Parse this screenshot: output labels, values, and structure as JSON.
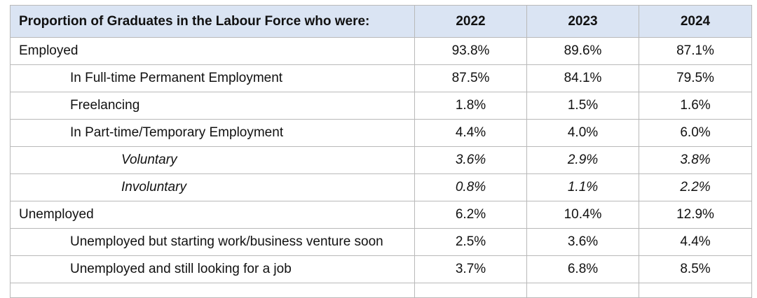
{
  "table": {
    "header": {
      "label": "Proportion of Graduates in the Labour Force who were:",
      "years": [
        "2022",
        "2023",
        "2024"
      ]
    },
    "rows": [
      {
        "label": "Employed",
        "level": 0,
        "italic": false,
        "values": [
          "93.8%",
          "89.6%",
          "87.1%"
        ]
      },
      {
        "label": "In Full-time Permanent Employment",
        "level": 1,
        "italic": false,
        "values": [
          "87.5%",
          "84.1%",
          "79.5%"
        ]
      },
      {
        "label": "Freelancing",
        "level": 1,
        "italic": false,
        "values": [
          "1.8%",
          "1.5%",
          "1.6%"
        ]
      },
      {
        "label": "In Part-time/Temporary Employment",
        "level": 1,
        "italic": false,
        "values": [
          "4.4%",
          "4.0%",
          "6.0%"
        ]
      },
      {
        "label": "Voluntary",
        "level": 2,
        "italic": true,
        "values": [
          "3.6%",
          "2.9%",
          "3.8%"
        ]
      },
      {
        "label": "Involuntary",
        "level": 2,
        "italic": true,
        "values": [
          "0.8%",
          "1.1%",
          "2.2%"
        ]
      },
      {
        "label": "Unemployed",
        "level": 0,
        "italic": false,
        "values": [
          "6.2%",
          "10.4%",
          "12.9%"
        ]
      },
      {
        "label": "Unemployed but starting work/business venture soon",
        "level": 1,
        "italic": false,
        "values": [
          "2.5%",
          "3.6%",
          "4.4%"
        ]
      },
      {
        "label": "Unemployed and still looking for a job",
        "level": 1,
        "italic": false,
        "values": [
          "3.7%",
          "6.8%",
          "8.5%"
        ]
      }
    ]
  }
}
